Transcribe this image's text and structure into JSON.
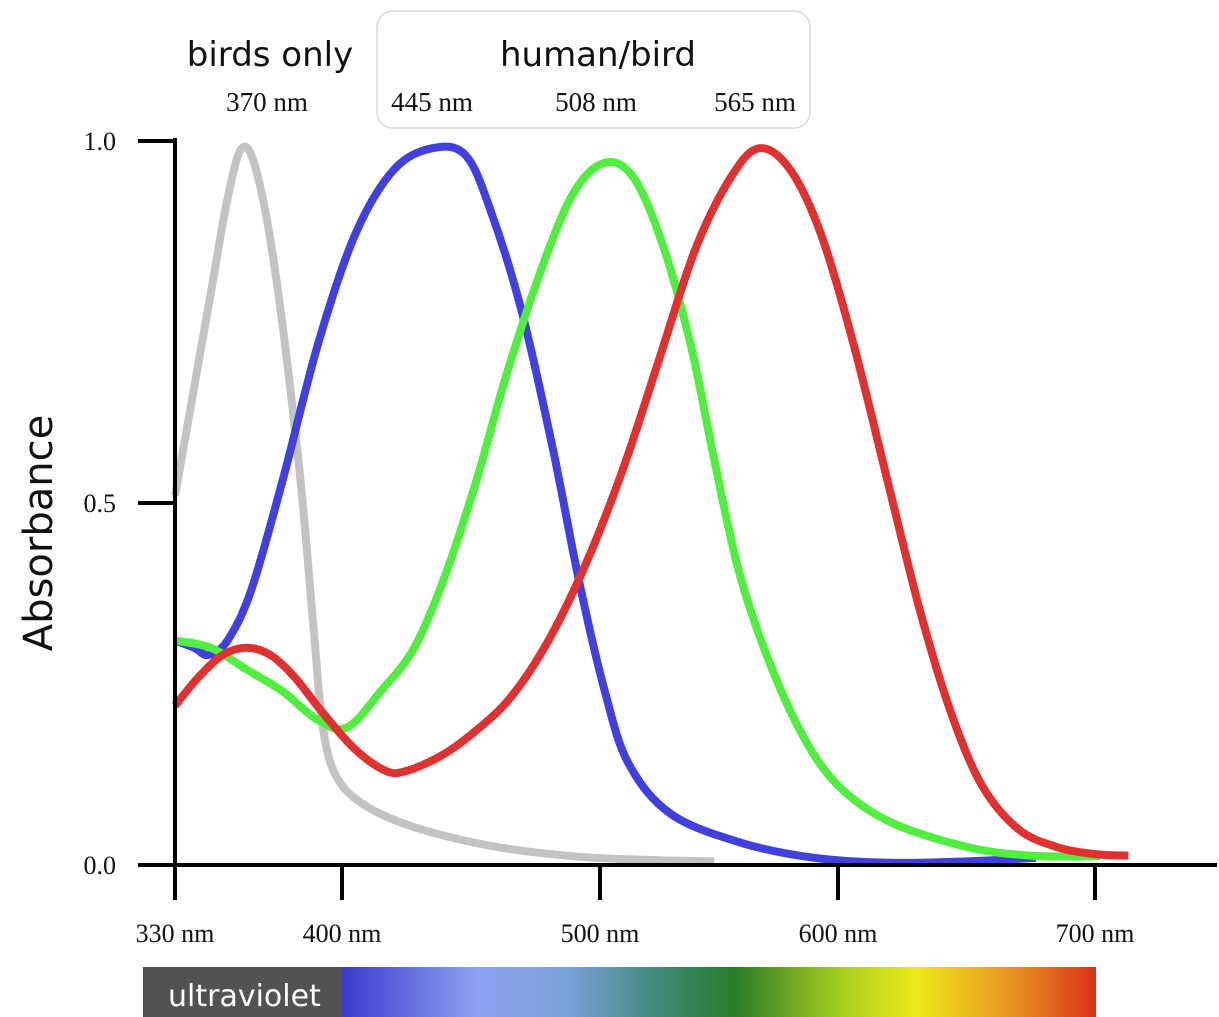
{
  "chart_data": {
    "type": "line",
    "ylabel": "Absorbance",
    "xlabel": "",
    "xlim": [
      330,
      700
    ],
    "ylim": [
      0,
      1
    ],
    "x_ticks": [
      {
        "value": 330,
        "label": "330 nm"
      },
      {
        "value": 400,
        "label": "400 nm"
      },
      {
        "value": 500,
        "label": "500 nm"
      },
      {
        "value": 600,
        "label": "600 nm"
      },
      {
        "value": 700,
        "label": "700 nm"
      }
    ],
    "y_ticks": [
      {
        "value": 0,
        "label": "0.0"
      },
      {
        "value": 0.5,
        "label": "0.5"
      },
      {
        "value": 1,
        "label": "1.0"
      }
    ],
    "groups": [
      {
        "label": "birds only",
        "peaks": [
          "370 nm"
        ],
        "boxed": false
      },
      {
        "label": "human/bird",
        "peaks": [
          "445 nm",
          "508 nm",
          "565 nm"
        ],
        "boxed": true
      }
    ],
    "spectrum_label": "ultraviolet",
    "series": [
      {
        "color": "#c3c3c3",
        "peak": 370,
        "points": [
          [
            330,
            0.51
          ],
          [
            345,
            0.79
          ],
          [
            352,
            0.92
          ],
          [
            358,
            0.99
          ],
          [
            364,
            0.96
          ],
          [
            372,
            0.82
          ],
          [
            382,
            0.55
          ],
          [
            388,
            0.33
          ],
          [
            392,
            0.19
          ],
          [
            398,
            0.12
          ],
          [
            410,
            0.08
          ],
          [
            430,
            0.05
          ],
          [
            460,
            0.025
          ],
          [
            490,
            0.012
          ],
          [
            520,
            0.007
          ],
          [
            548,
            0.005
          ]
        ]
      },
      {
        "color": "#4040e0",
        "peak": 445,
        "points": [
          [
            330,
            0.31
          ],
          [
            338,
            0.3
          ],
          [
            344,
            0.29
          ],
          [
            352,
            0.31
          ],
          [
            362,
            0.38
          ],
          [
            375,
            0.53
          ],
          [
            390,
            0.72
          ],
          [
            405,
            0.87
          ],
          [
            420,
            0.96
          ],
          [
            435,
            0.99
          ],
          [
            448,
            0.98
          ],
          [
            458,
            0.9
          ],
          [
            470,
            0.76
          ],
          [
            482,
            0.57
          ],
          [
            492,
            0.39
          ],
          [
            502,
            0.24
          ],
          [
            512,
            0.14
          ],
          [
            530,
            0.07
          ],
          [
            560,
            0.03
          ],
          [
            590,
            0.01
          ],
          [
            620,
            0.003
          ],
          [
            650,
            0.005
          ],
          [
            677,
            0.01
          ]
        ]
      },
      {
        "color": "#50ee3e",
        "peak": 508,
        "points": [
          [
            330,
            0.31
          ],
          [
            345,
            0.3
          ],
          [
            360,
            0.27
          ],
          [
            375,
            0.24
          ],
          [
            390,
            0.2
          ],
          [
            402,
            0.19
          ],
          [
            415,
            0.24
          ],
          [
            428,
            0.3
          ],
          [
            440,
            0.4
          ],
          [
            452,
            0.53
          ],
          [
            464,
            0.68
          ],
          [
            478,
            0.83
          ],
          [
            490,
            0.93
          ],
          [
            502,
            0.97
          ],
          [
            514,
            0.95
          ],
          [
            526,
            0.86
          ],
          [
            538,
            0.72
          ],
          [
            548,
            0.56
          ],
          [
            558,
            0.41
          ],
          [
            570,
            0.29
          ],
          [
            585,
            0.18
          ],
          [
            600,
            0.11
          ],
          [
            620,
            0.06
          ],
          [
            650,
            0.025
          ],
          [
            675,
            0.013
          ],
          [
            702,
            0.012
          ]
        ]
      },
      {
        "color": "#e03030",
        "peak": 565,
        "points": [
          [
            330,
            0.22
          ],
          [
            340,
            0.26
          ],
          [
            350,
            0.29
          ],
          [
            360,
            0.3
          ],
          [
            370,
            0.29
          ],
          [
            380,
            0.26
          ],
          [
            392,
            0.21
          ],
          [
            405,
            0.16
          ],
          [
            417,
            0.13
          ],
          [
            425,
            0.13
          ],
          [
            438,
            0.15
          ],
          [
            450,
            0.18
          ],
          [
            465,
            0.23
          ],
          [
            480,
            0.31
          ],
          [
            495,
            0.42
          ],
          [
            510,
            0.55
          ],
          [
            525,
            0.7
          ],
          [
            540,
            0.85
          ],
          [
            555,
            0.95
          ],
          [
            567,
            0.99
          ],
          [
            580,
            0.96
          ],
          [
            593,
            0.87
          ],
          [
            606,
            0.72
          ],
          [
            620,
            0.52
          ],
          [
            632,
            0.35
          ],
          [
            644,
            0.21
          ],
          [
            656,
            0.11
          ],
          [
            670,
            0.05
          ],
          [
            685,
            0.025
          ],
          [
            700,
            0.015
          ],
          [
            713,
            0.013
          ]
        ]
      }
    ]
  }
}
